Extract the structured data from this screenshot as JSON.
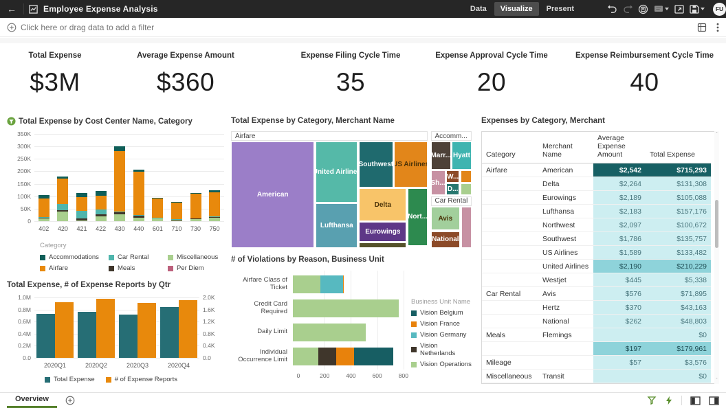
{
  "topbar": {
    "title": "Employee Expense Analysis",
    "tabs": [
      {
        "label": "Data",
        "active": false
      },
      {
        "label": "Visualize",
        "active": true
      },
      {
        "label": "Present",
        "active": false
      }
    ],
    "icons": [
      "undo",
      "redo",
      "collaboration",
      "comment",
      "open-in-window",
      "save"
    ],
    "avatar": "FU"
  },
  "filter_bar": {
    "prompt": "Click here or drag data to add a filter"
  },
  "kpis": [
    {
      "label": "Total Expense",
      "value": "$3M"
    },
    {
      "label": "Average Expense Amount",
      "value": "$360"
    },
    {
      "label": "Expense Filing Cycle Time",
      "value": "35"
    },
    {
      "label": "Expense Approval Cycle Time",
      "value": "20"
    },
    {
      "label": "Expense Reimbursement Cycle Time",
      "value": "40"
    }
  ],
  "chart_data": [
    {
      "id": "cost_center",
      "type": "bar",
      "stacked": true,
      "title": "Total Expense by Cost Center Name, Category",
      "has_filter_badge": true,
      "categories": [
        "402",
        "420",
        "421",
        "422",
        "430",
        "440",
        "601",
        "710",
        "730",
        "750"
      ],
      "series": [
        {
          "name": "Miscellaneous",
          "color": "#a9cf8e",
          "values": [
            12,
            40,
            2,
            18,
            28,
            15,
            10,
            3,
            8,
            15
          ]
        },
        {
          "name": "Meals",
          "color": "#3f362b",
          "values": [
            3,
            5,
            10,
            10,
            8,
            6,
            2,
            2,
            2,
            2
          ]
        },
        {
          "name": "Car Rental",
          "color": "#4fb5ac",
          "values": [
            2,
            25,
            30,
            20,
            3,
            3,
            2,
            2,
            2,
            3
          ]
        },
        {
          "name": "Airfare",
          "color": "#e8890c",
          "values": [
            75,
            100,
            55,
            55,
            241,
            174,
            76,
            68,
            98,
            95
          ]
        },
        {
          "name": "Accommodations",
          "color": "#0f5e58",
          "values": [
            13,
            10,
            15,
            19,
            20,
            10,
            3,
            3,
            4,
            10
          ]
        }
      ],
      "legend_title": "Category",
      "legend": [
        {
          "name": "Accommodations",
          "color": "#0f5e58"
        },
        {
          "name": "Car Rental",
          "color": "#4fb5ac"
        },
        {
          "name": "Miscellaneous",
          "color": "#a9cf8e"
        },
        {
          "name": "Airfare",
          "color": "#e8890c"
        },
        {
          "name": "Meals",
          "color": "#3f362b"
        },
        {
          "name": "Per Diem",
          "color": "#bc607c"
        }
      ],
      "yticks": [
        "350K",
        "300K",
        "250K",
        "200K",
        "150K",
        "100K",
        "50K",
        "0"
      ],
      "ymax": 350,
      "grid": true
    },
    {
      "id": "treemap",
      "type": "heatmap",
      "subtype": "treemap",
      "title": "Total Expense by Category, Merchant Name",
      "headers": [
        {
          "label": "Airfare",
          "x": 0,
          "y": 0,
          "w": 81.7,
          "h": 8.4
        },
        {
          "label": "Accomm...",
          "x": 83,
          "y": 0,
          "w": 17,
          "h": 8.4
        },
        {
          "label": "Car Rental",
          "x": 83,
          "y": 55.7,
          "w": 17,
          "h": 8.3
        }
      ],
      "tiles": [
        {
          "label": "American",
          "x": 0,
          "y": 9,
          "w": 34.7,
          "h": 91,
          "color": "#9b7ec8",
          "text": "light"
        },
        {
          "label": "United Airlines",
          "x": 35.2,
          "y": 9,
          "w": 17.5,
          "h": 52,
          "color": "#55b9a8",
          "text": "light"
        },
        {
          "label": "Lufthansa",
          "x": 35.2,
          "y": 61.7,
          "w": 17.5,
          "h": 38.3,
          "color": "#59a0b0",
          "text": "light"
        },
        {
          "label": "Southwest",
          "x": 53.2,
          "y": 9,
          "w": 14.1,
          "h": 39.5,
          "color": "#1f6a6e",
          "text": "light"
        },
        {
          "label": "US Airlines",
          "x": 67.8,
          "y": 9,
          "w": 13.9,
          "h": 39.5,
          "color": "#e2861a",
          "text": "dark"
        },
        {
          "label": "Delta",
          "x": 53.2,
          "y": 49,
          "w": 19.8,
          "h": 28.2,
          "color": "#f8c469",
          "text": "dark"
        },
        {
          "label": "Nort...",
          "x": 73.5,
          "y": 49,
          "w": 8.2,
          "h": 49,
          "color": "#2d8a4f",
          "text": "light"
        },
        {
          "label": "Eurowings",
          "x": 53.2,
          "y": 77.6,
          "w": 19.8,
          "h": 17.4,
          "color": "#5e3787",
          "text": "light"
        },
        {
          "label": "",
          "x": 53.2,
          "y": 95.4,
          "w": 19.8,
          "h": 4.6,
          "color": "#55522a",
          "text": "light"
        },
        {
          "label": "Marr...",
          "x": 83,
          "y": 9,
          "w": 8.4,
          "h": 24,
          "color": "#4d4138",
          "text": "light"
        },
        {
          "label": "Hyatt",
          "x": 91.7,
          "y": 9,
          "w": 8.3,
          "h": 24,
          "color": "#3fb4b0",
          "text": "light"
        },
        {
          "label": "Sh...",
          "x": 83,
          "y": 33.5,
          "w": 6,
          "h": 21.5,
          "color": "#c791a3",
          "text": "light"
        },
        {
          "label": "W...",
          "x": 89.4,
          "y": 33.5,
          "w": 5.6,
          "h": 10.8,
          "color": "#8c4a28",
          "text": "light"
        },
        {
          "label": "D...",
          "x": 89.4,
          "y": 44.9,
          "w": 5.6,
          "h": 10.1,
          "color": "#27776f",
          "text": "light"
        },
        {
          "label": "",
          "x": 95.3,
          "y": 33.5,
          "w": 4.7,
          "h": 10.8,
          "color": "#e2861a",
          "text": "light"
        },
        {
          "label": "",
          "x": 95.3,
          "y": 44.9,
          "w": 4.7,
          "h": 10.1,
          "color": "#a9cf8e",
          "text": "light"
        },
        {
          "label": "Avis",
          "x": 83,
          "y": 64.7,
          "w": 12.2,
          "h": 20.3,
          "color": "#a2cf9c",
          "text": "dark"
        },
        {
          "label": "National",
          "x": 83,
          "y": 85.6,
          "w": 12.2,
          "h": 14.4,
          "color": "#8c4a28",
          "text": "light"
        },
        {
          "label": "",
          "x": 95.6,
          "y": 64.7,
          "w": 4.4,
          "h": 35.3,
          "color": "#c791a3",
          "text": "light"
        }
      ]
    },
    {
      "id": "violations",
      "type": "bar",
      "orientation": "horizontal",
      "stacked": true,
      "title": "# of Violations by Reason, Business Unit",
      "categories": [
        "Airfare Class of Ticket",
        "Credit Card Required",
        "Daily Limit",
        "Individual Occurrence Limit"
      ],
      "series": [
        {
          "name": "Vision Operations",
          "color": "#a9cf8e",
          "values": [
            210,
            805,
            555,
            195
          ]
        },
        {
          "name": "Vision Netherlands",
          "color": "#3f362b",
          "values": [
            0,
            0,
            0,
            135
          ]
        },
        {
          "name": "Vision Germany",
          "color": "#57b9c0",
          "values": [
            170,
            0,
            0,
            0
          ]
        },
        {
          "name": "Vision France",
          "color": "#e8820c",
          "values": [
            5,
            0,
            0,
            135
          ]
        },
        {
          "name": "Vision Belgium",
          "color": "#175e63",
          "values": [
            0,
            0,
            0,
            300
          ]
        }
      ],
      "legend_title": "Business Unit Name",
      "legend": [
        {
          "name": "Vision Belgium",
          "color": "#175e63"
        },
        {
          "name": "Vision France",
          "color": "#e8820c"
        },
        {
          "name": "Vision Germany",
          "color": "#57b9c0"
        },
        {
          "name": "Vision Netherlands",
          "color": "#3f362b"
        },
        {
          "name": "Vision Operations",
          "color": "#a9cf8e"
        }
      ],
      "xticks": [
        0,
        200,
        400,
        600,
        800
      ],
      "xmax": 900,
      "grid": true
    },
    {
      "id": "qtr",
      "type": "bar",
      "dual_axis": true,
      "title": "Total Expense, # of Expense Reports by Qtr",
      "categories": [
        "2020Q1",
        "2020Q2",
        "2020Q3",
        "2020Q4"
      ],
      "series": [
        {
          "name": "Total Expense",
          "color": "#266e75",
          "axis": "left",
          "unit": "M",
          "values": [
            0.73,
            0.76,
            0.72,
            0.84
          ]
        },
        {
          "name": "# of Expense Reports",
          "color": "#e8890c",
          "axis": "right",
          "unit": "K",
          "values": [
            1.85,
            1.95,
            1.82,
            1.9
          ]
        }
      ],
      "left_ticks": [
        "1.0M",
        "0.8M",
        "0.6M",
        "0.4M",
        "0.2M",
        "0.0"
      ],
      "right_ticks": [
        "2.0K",
        "1.6K",
        "1.2K",
        "0.8K",
        "0.4K",
        "0.0"
      ],
      "left_max": 1.0,
      "right_max": 2.0,
      "grid": true
    }
  ],
  "table": {
    "title": "Expenses by Category, Merchant",
    "columns": [
      "Category",
      "Merchant Name",
      "Average Expense Amount",
      "Total Expense"
    ],
    "rows": [
      {
        "category": "Airfare",
        "merchant": "American",
        "avg": "$2,542",
        "total": "$715,293",
        "highlight": "dark",
        "group_start": true
      },
      {
        "category": "",
        "merchant": "Delta",
        "avg": "$2,264",
        "total": "$131,308",
        "highlight": "light"
      },
      {
        "category": "",
        "merchant": "Eurowings",
        "avg": "$2,189",
        "total": "$105,088",
        "highlight": "light"
      },
      {
        "category": "",
        "merchant": "Lufthansa",
        "avg": "$2,183",
        "total": "$157,176",
        "highlight": "light"
      },
      {
        "category": "",
        "merchant": "Northwest",
        "avg": "$2,097",
        "total": "$100,672",
        "highlight": "light"
      },
      {
        "category": "",
        "merchant": "Southwest",
        "avg": "$1,786",
        "total": "$135,757",
        "highlight": "light"
      },
      {
        "category": "",
        "merchant": "US Airlines",
        "avg": "$1,589",
        "total": "$133,482",
        "highlight": "light"
      },
      {
        "category": "",
        "merchant": "United Airlines",
        "avg": "$2,190",
        "total": "$210,229",
        "highlight": "medium"
      },
      {
        "category": "",
        "merchant": "Westjet",
        "avg": "$445",
        "total": "$5,338",
        "highlight": "light"
      },
      {
        "category": "Car Rental",
        "merchant": "Avis",
        "avg": "$576",
        "total": "$71,895",
        "highlight": "light",
        "group_start": true
      },
      {
        "category": "",
        "merchant": "Hertz",
        "avg": "$370",
        "total": "$43,163",
        "highlight": "light"
      },
      {
        "category": "",
        "merchant": "National",
        "avg": "$262",
        "total": "$48,803",
        "highlight": "light"
      },
      {
        "category": "Meals",
        "merchant": "Flemings",
        "avg": "",
        "total": "$0",
        "highlight": "light",
        "group_start": true
      },
      {
        "category": "",
        "merchant": "",
        "avg": "$197",
        "total": "$179,961",
        "highlight": "medium"
      },
      {
        "category": "Mileage",
        "merchant": "",
        "avg": "$57",
        "total": "$3,576",
        "highlight": "light",
        "group_start": true
      },
      {
        "category": "Miscellaneous",
        "merchant": "Transit",
        "avg": "",
        "total": "$0",
        "highlight": "light",
        "group_start": true
      }
    ]
  },
  "bottom_bar": {
    "active_tab": "Overview"
  },
  "colors": {
    "accent_green": "#55802b",
    "topbar_bg": "#262626",
    "table_dark": "#176064",
    "table_medium": "#8ed3da",
    "table_light": "#cdeef1"
  }
}
